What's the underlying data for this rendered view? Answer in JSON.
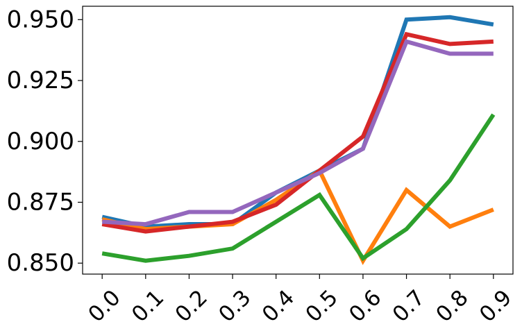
{
  "chart_data": {
    "type": "line",
    "x_ticks": [
      "0.0",
      "0.1",
      "0.2",
      "0.3",
      "0.4",
      "0.5",
      "0.6",
      "0.7",
      "0.8",
      "0.9"
    ],
    "x": [
      0.0,
      0.1,
      0.2,
      0.3,
      0.4,
      0.5,
      0.6,
      0.7,
      0.8,
      0.9
    ],
    "y_ticks": [
      "0.850",
      "0.875",
      "0.900",
      "0.925",
      "0.950"
    ],
    "ylim": [
      0.8455,
      0.9555
    ],
    "xlim": [
      -0.045,
      0.945
    ],
    "grid": false,
    "legend": false,
    "series": [
      {
        "color": "#1f77b4",
        "values": [
          0.869,
          0.865,
          0.866,
          0.866,
          0.879,
          0.888,
          0.897,
          0.95,
          0.951,
          0.948
        ]
      },
      {
        "color": "#ff7f0e",
        "values": [
          0.868,
          0.864,
          0.865,
          0.866,
          0.876,
          0.888,
          0.851,
          0.88,
          0.865,
          0.872
        ]
      },
      {
        "color": "#2ca02c",
        "values": [
          0.854,
          0.851,
          0.853,
          0.856,
          0.867,
          0.878,
          0.852,
          0.864,
          0.884,
          0.911
        ]
      },
      {
        "color": "#d62728",
        "values": [
          0.866,
          0.863,
          0.865,
          0.867,
          0.874,
          0.888,
          0.902,
          0.944,
          0.94,
          0.941
        ]
      },
      {
        "color": "#9467bd",
        "values": [
          0.867,
          0.866,
          0.871,
          0.871,
          0.879,
          0.887,
          0.897,
          0.941,
          0.936,
          0.936
        ]
      }
    ]
  }
}
